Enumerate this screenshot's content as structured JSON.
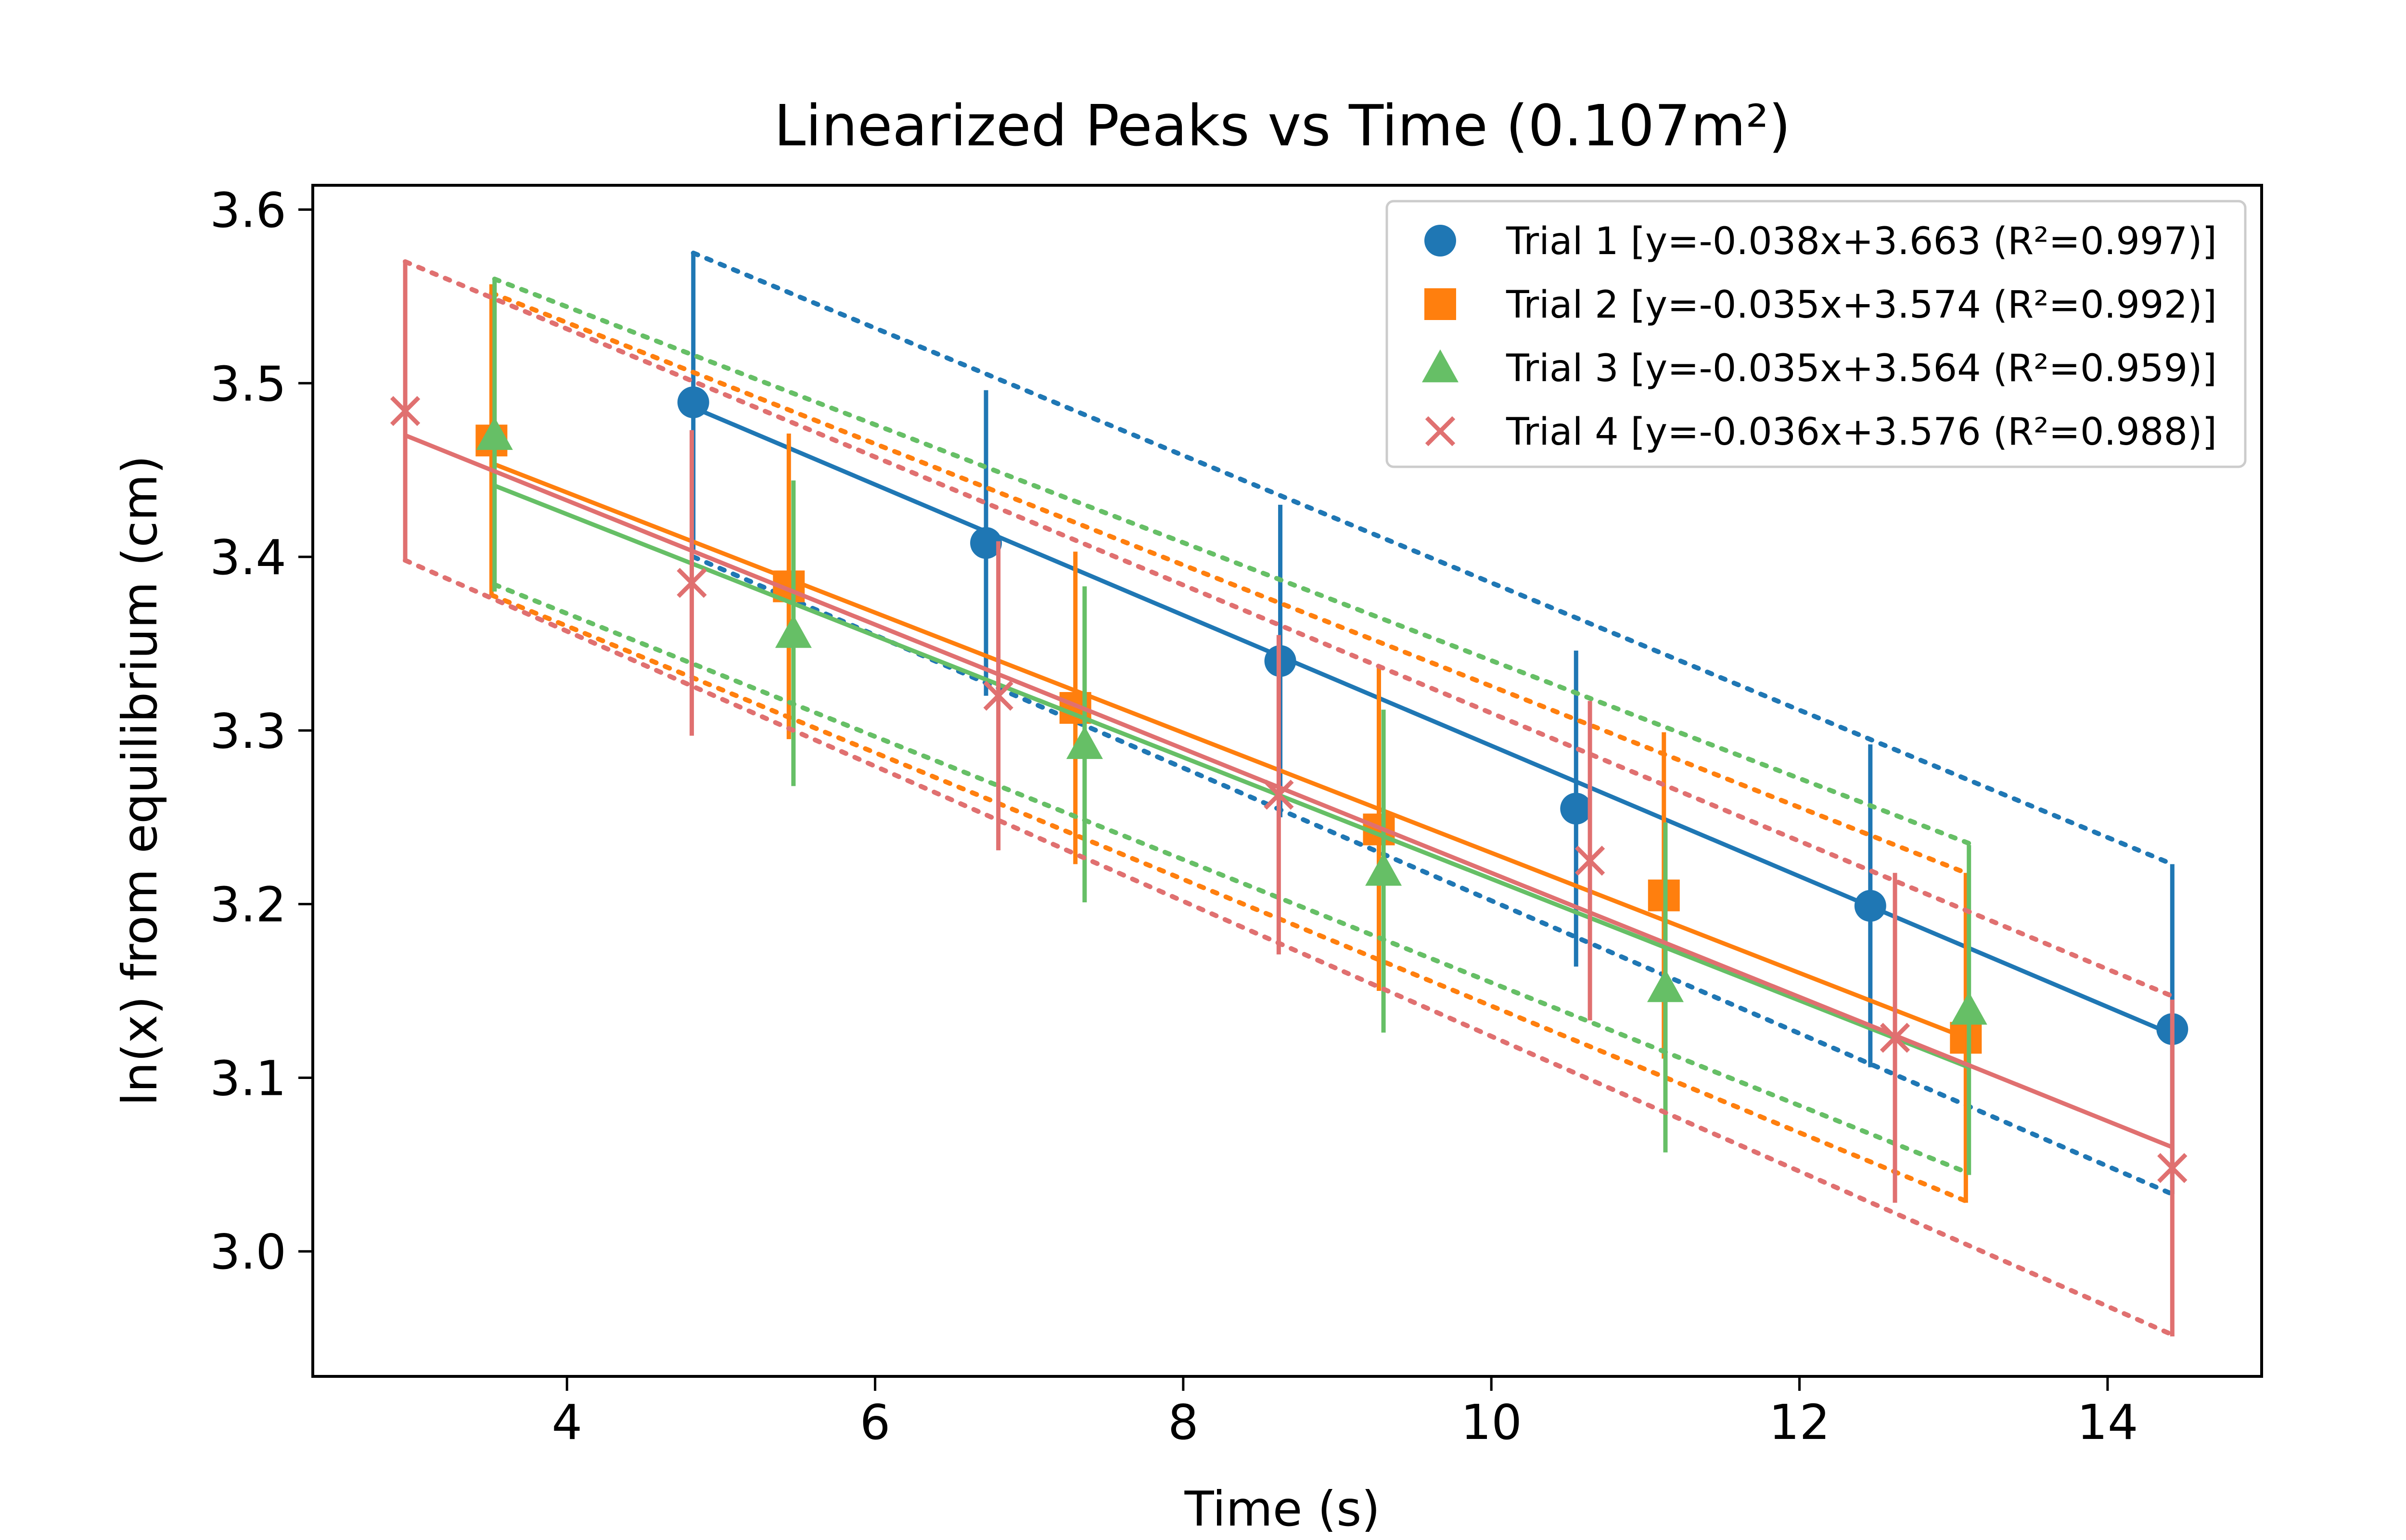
{
  "chart_data": {
    "type": "scatter",
    "title": "Linearized Peaks vs Time (0.107m²)",
    "xlabel": "Time (s)",
    "ylabel": "ln(x) from equilibrium (cm)",
    "xlim": [
      2.35,
      15.0
    ],
    "ylim": [
      2.928,
      3.614
    ],
    "xticks": [
      4,
      6,
      8,
      10,
      12,
      14
    ],
    "xtick_labels": [
      "4",
      "6",
      "8",
      "10",
      "12",
      "14"
    ],
    "yticks": [
      3.0,
      3.1,
      3.2,
      3.3,
      3.4,
      3.5,
      3.6
    ],
    "ytick_labels": [
      "3.0",
      "3.1",
      "3.2",
      "3.3",
      "3.4",
      "3.5",
      "3.6"
    ],
    "grid": false,
    "legend_position": "top-right",
    "series": [
      {
        "name": "Trial 1 [y=-0.038x+3.663 (R²=0.997)]",
        "color": "#1f77b4",
        "marker": "circle",
        "x": [
          4.82,
          6.72,
          8.63,
          10.55,
          12.46,
          14.42
        ],
        "y": [
          3.489,
          3.408,
          3.34,
          3.255,
          3.199,
          3.128
        ],
        "yerr": [
          0.086,
          0.088,
          0.09,
          0.091,
          0.093,
          0.095
        ],
        "fit": {
          "x": [
            4.82,
            14.42
          ],
          "y": [
            3.486,
            3.125
          ]
        },
        "upper_bound": {
          "x": [
            4.82,
            14.42
          ],
          "y": [
            3.575,
            3.223
          ]
        },
        "lower_bound": {
          "x": [
            4.82,
            14.42
          ],
          "y": [
            3.4,
            3.033
          ]
        }
      },
      {
        "name": "Trial 2 [y=-0.035x+3.574 (R²=0.992)]",
        "color": "#ff7f0e",
        "marker": "square",
        "x": [
          3.51,
          5.44,
          7.3,
          9.27,
          11.12,
          13.08
        ],
        "y": [
          3.467,
          3.383,
          3.313,
          3.243,
          3.205,
          3.123
        ],
        "yerr": [
          0.09,
          0.088,
          0.09,
          0.093,
          0.094,
          0.095
        ],
        "fit": {
          "x": [
            3.51,
            13.08
          ],
          "y": [
            3.454,
            3.123
          ]
        },
        "upper_bound": {
          "x": [
            3.51,
            13.08
          ],
          "y": [
            3.552,
            3.218
          ]
        },
        "lower_bound": {
          "x": [
            3.51,
            13.08
          ],
          "y": [
            3.378,
            3.029
          ]
        }
      },
      {
        "name": "Trial 3 [y=-0.035x+3.564 (R²=0.959)]",
        "color": "#66bf66",
        "marker": "triangle",
        "x": [
          3.53,
          5.47,
          7.36,
          9.3,
          11.13,
          13.1
        ],
        "y": [
          3.47,
          3.356,
          3.292,
          3.219,
          3.152,
          3.139
        ],
        "yerr": [
          0.09,
          0.088,
          0.091,
          0.093,
          0.095,
          0.095
        ],
        "fit": {
          "x": [
            3.53,
            13.1
          ],
          "y": [
            3.441,
            3.106
          ]
        },
        "upper_bound": {
          "x": [
            3.53,
            13.1
          ],
          "y": [
            3.56,
            3.235
          ]
        },
        "lower_bound": {
          "x": [
            3.53,
            13.1
          ],
          "y": [
            3.384,
            3.045
          ]
        }
      },
      {
        "name": "Trial 4 [y=-0.036x+3.576 (R²=0.988)]",
        "color": "#e07070",
        "marker": "x",
        "x": [
          2.95,
          4.81,
          6.8,
          8.62,
          10.64,
          12.62,
          14.42
        ],
        "y": [
          3.484,
          3.385,
          3.32,
          3.263,
          3.225,
          3.123,
          3.048
        ],
        "yerr": [
          0.087,
          0.088,
          0.089,
          0.092,
          0.092,
          0.095,
          0.097
        ],
        "fit": {
          "x": [
            2.95,
            14.42
          ],
          "y": [
            3.47,
            3.06
          ]
        },
        "upper_bound": {
          "x": [
            2.95,
            14.42
          ],
          "y": [
            3.57,
            3.147
          ]
        },
        "lower_bound": {
          "x": [
            2.95,
            14.42
          ],
          "y": [
            3.398,
            2.952
          ]
        }
      }
    ]
  }
}
